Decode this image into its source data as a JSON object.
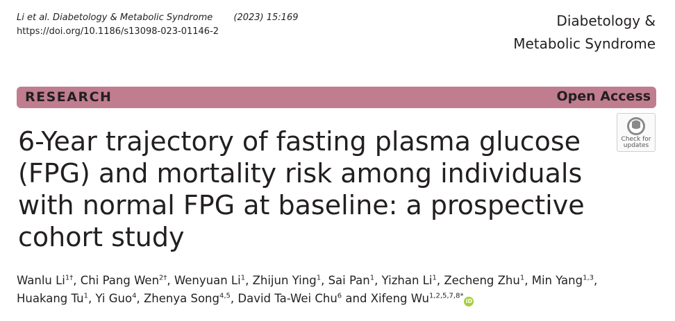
{
  "citation": {
    "journal_abbr": "Li et al. Diabetology & Metabolic Syndrome",
    "volume": "(2023) 15:169",
    "doi": "https://doi.org/10.1186/s13098-023-01146-2"
  },
  "journal": {
    "line1": "Diabetology &",
    "line2": "Metabolic Syndrome"
  },
  "banner": {
    "section": "RESEARCH",
    "access": "Open Access",
    "color": "#c07d90"
  },
  "badge": {
    "line1": "Check for",
    "line2": "updates",
    "icon": "check-for-updates-icon"
  },
  "title": "6-Year trajectory of fasting plasma glucose (FPG) and mortality risk among individuals with normal FPG at baseline: a prospective cohort study",
  "authors": [
    {
      "name": "Wanlu Li",
      "sup": "1†"
    },
    {
      "name": "Chi Pang Wen",
      "sup": "2†"
    },
    {
      "name": "Wenyuan Li",
      "sup": "1"
    },
    {
      "name": "Zhijun Ying",
      "sup": "1"
    },
    {
      "name": "Sai Pan",
      "sup": "1"
    },
    {
      "name": "Yizhan Li",
      "sup": "1"
    },
    {
      "name": "Zecheng Zhu",
      "sup": "1"
    },
    {
      "name": "Min Yang",
      "sup": "1,3"
    },
    {
      "name": "Huakang Tu",
      "sup": "1"
    },
    {
      "name": "Yi Guo",
      "sup": "4"
    },
    {
      "name": "Zhenya Song",
      "sup": "4,5"
    },
    {
      "name": "David Ta-Wei Chu",
      "sup": "6"
    },
    {
      "name": "Xifeng Wu",
      "sup": "1,2,5,7,8*"
    }
  ],
  "orcid": {
    "label": "iD",
    "icon": "orcid-icon",
    "color": "#a6ce39"
  }
}
